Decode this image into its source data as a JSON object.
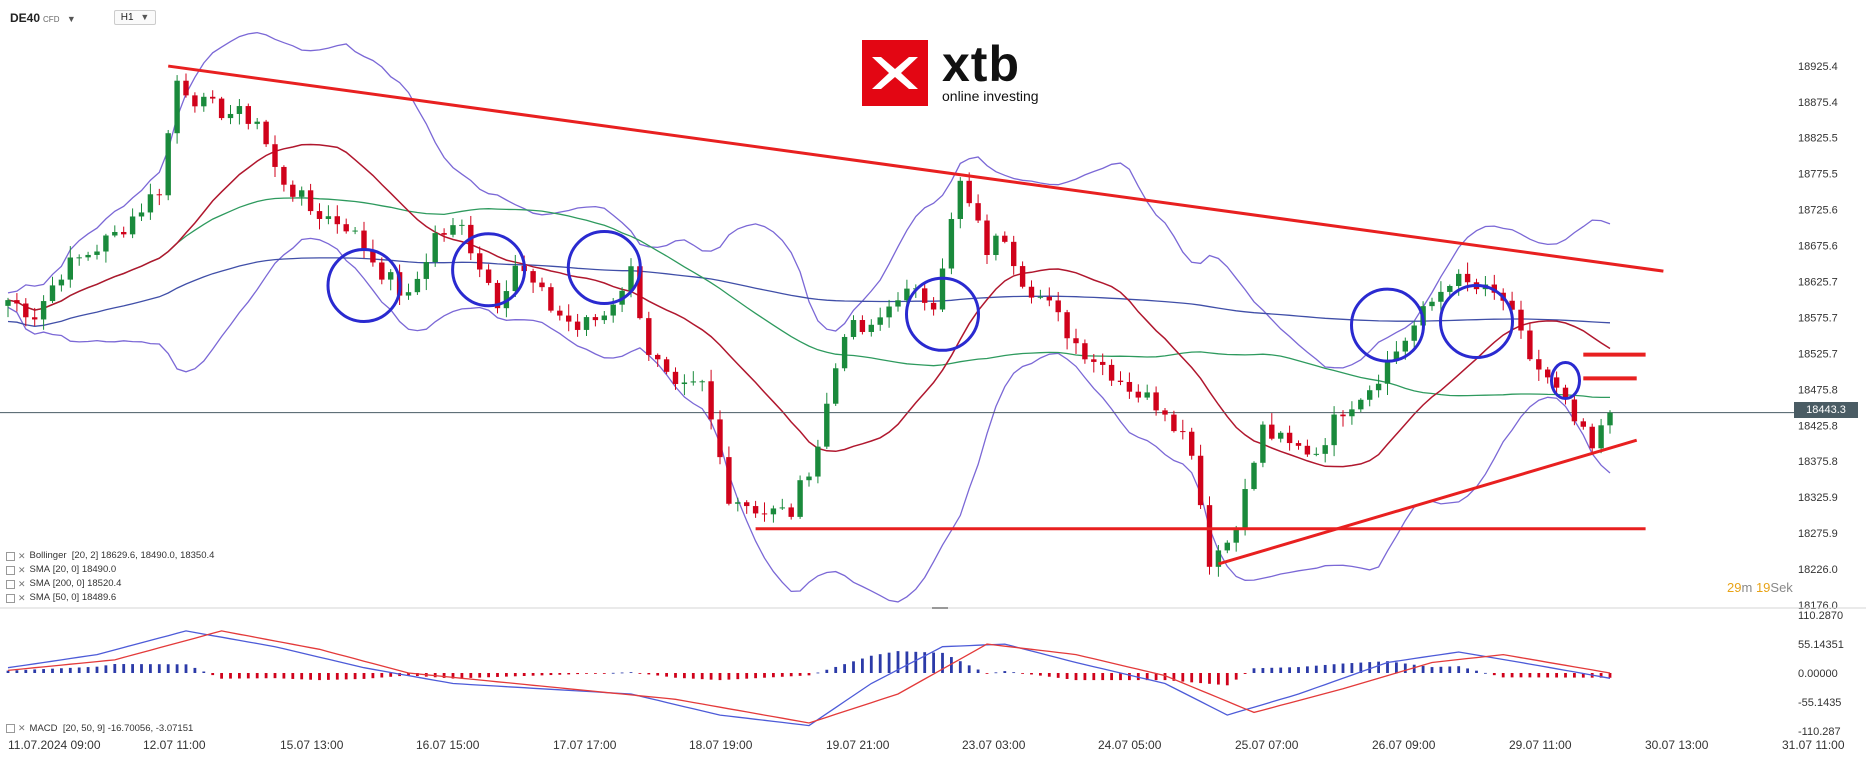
{
  "header": {
    "symbol": "DE40",
    "instrument_type": "CFD",
    "timeframe": "H1"
  },
  "logo": {
    "wordmark": "xtb",
    "tagline": "online investing",
    "color": "#e30613"
  },
  "current_price": {
    "value": "18443.3",
    "line_color": "#4a5c64"
  },
  "candle_timer": {
    "minutes": "29",
    "minutes_unit": "m",
    "seconds": "19",
    "seconds_unit": "Sek"
  },
  "indicators": [
    {
      "label": "Bollinger",
      "params": "[20, 2] 18629.6, 18490.0, 18350.4",
      "color": "#7b68d6"
    },
    {
      "label": "SMA",
      "params": "[20, 0] 18490.0",
      "color": "#b0172e"
    },
    {
      "label": "SMA",
      "params": "[200, 0] 18520.4",
      "color": "#404fa8"
    },
    {
      "label": "SMA",
      "params": "[50, 0] 18489.6",
      "color": "#2e9a5e"
    }
  ],
  "macd": {
    "label": "MACD",
    "params": "[20, 50, 9] -16.70056, -3.07151"
  },
  "chart_data": [
    {
      "type": "candlestick",
      "title": "",
      "y_axis_ticks": [
        "18925.4",
        "18875.4",
        "18825.5",
        "18775.5",
        "18725.6",
        "18675.6",
        "18625.7",
        "18575.7",
        "18525.7",
        "18475.8",
        "18425.8",
        "18375.8",
        "18325.9",
        "18275.9",
        "18226.0",
        "18176.0"
      ],
      "ylim": [
        18176.0,
        18939.0
      ],
      "x_axis_ticks": [
        "11.07.2024 09:00",
        "12.07 11:00",
        "15.07 13:00",
        "16.07 15:00",
        "17.07 17:00",
        "18.07 19:00",
        "19.07 21:00",
        "23.07 03:00",
        "24.07 05:00",
        "25.07 07:00",
        "26.07 09:00",
        "29.07 11:00",
        "30.07 13:00",
        "31.07 11:00"
      ],
      "anchors": [
        {
          "i": 0,
          "p": 18600
        },
        {
          "i": 3,
          "p": 18580
        },
        {
          "i": 6,
          "p": 18640
        },
        {
          "i": 12,
          "p": 18690
        },
        {
          "i": 17,
          "p": 18755
        },
        {
          "i": 19,
          "p": 18905
        },
        {
          "i": 22,
          "p": 18870
        },
        {
          "i": 28,
          "p": 18850
        },
        {
          "i": 30,
          "p": 18780
        },
        {
          "i": 34,
          "p": 18725
        },
        {
          "i": 38,
          "p": 18705
        },
        {
          "i": 42,
          "p": 18640
        },
        {
          "i": 45,
          "p": 18600
        },
        {
          "i": 48,
          "p": 18690
        },
        {
          "i": 51,
          "p": 18700
        },
        {
          "i": 55,
          "p": 18600
        },
        {
          "i": 57,
          "p": 18650
        },
        {
          "i": 61,
          "p": 18590
        },
        {
          "i": 64,
          "p": 18560
        },
        {
          "i": 67,
          "p": 18580
        },
        {
          "i": 70,
          "p": 18640
        },
        {
          "i": 72,
          "p": 18530
        },
        {
          "i": 75,
          "p": 18470
        },
        {
          "i": 78,
          "p": 18480
        },
        {
          "i": 81,
          "p": 18330
        },
        {
          "i": 85,
          "p": 18305
        },
        {
          "i": 88,
          "p": 18305
        },
        {
          "i": 91,
          "p": 18400
        },
        {
          "i": 94,
          "p": 18560
        },
        {
          "i": 97,
          "p": 18555
        },
        {
          "i": 100,
          "p": 18610
        },
        {
          "i": 104,
          "p": 18600
        },
        {
          "i": 107,
          "p": 18760
        },
        {
          "i": 110,
          "p": 18670
        },
        {
          "i": 112,
          "p": 18690
        },
        {
          "i": 114,
          "p": 18630
        },
        {
          "i": 117,
          "p": 18590
        },
        {
          "i": 120,
          "p": 18540
        },
        {
          "i": 124,
          "p": 18500
        },
        {
          "i": 127,
          "p": 18470
        },
        {
          "i": 130,
          "p": 18450
        },
        {
          "i": 133,
          "p": 18395
        },
        {
          "i": 135,
          "p": 18240
        },
        {
          "i": 137,
          "p": 18265
        },
        {
          "i": 139,
          "p": 18330
        },
        {
          "i": 141,
          "p": 18420
        },
        {
          "i": 144,
          "p": 18395
        },
        {
          "i": 147,
          "p": 18390
        },
        {
          "i": 150,
          "p": 18450
        },
        {
          "i": 153,
          "p": 18480
        },
        {
          "i": 156,
          "p": 18530
        },
        {
          "i": 159,
          "p": 18580
        },
        {
          "i": 162,
          "p": 18630
        },
        {
          "i": 165,
          "p": 18615
        },
        {
          "i": 168,
          "p": 18600
        },
        {
          "i": 171,
          "p": 18520
        },
        {
          "i": 174,
          "p": 18470
        },
        {
          "i": 176,
          "p": 18430
        },
        {
          "i": 178,
          "p": 18390
        },
        {
          "i": 180,
          "p": 18443
        }
      ],
      "annotations": {
        "resistance_trendline": {
          "from": {
            "i": 18,
            "p": 18925
          },
          "to": {
            "i": 186,
            "p": 18640
          },
          "color": "#e82020"
        },
        "support_trendline": {
          "from": {
            "i": 136,
            "p": 18233
          },
          "to": {
            "i": 183,
            "p": 18405
          },
          "color": "#e82020"
        },
        "horizontal_support": {
          "from_i": 84,
          "to_i": 184,
          "p": 18282,
          "color": "#e82020"
        },
        "target_marks": [
          {
            "i_from": 177,
            "i_to": 184,
            "p": 18524
          },
          {
            "i_from": 177,
            "i_to": 183,
            "p": 18491
          }
        ],
        "circles": [
          {
            "i": 40,
            "p": 18620
          },
          {
            "i": 54,
            "p": 18642
          },
          {
            "i": 67,
            "p": 18645
          },
          {
            "i": 105,
            "p": 18580
          },
          {
            "i": 155,
            "p": 18565
          },
          {
            "i": 165,
            "p": 18570
          },
          {
            "i": 175,
            "p": 18488
          }
        ]
      }
    },
    {
      "type": "macd",
      "y_axis_ticks": [
        "110.2870",
        "55.14351",
        "0.00000",
        "-55.1435",
        "-110.287"
      ],
      "ylim": [
        -110.287,
        110.287
      ],
      "macd_anchors": [
        {
          "i": 0,
          "v": 10
        },
        {
          "i": 10,
          "v": 35
        },
        {
          "i": 20,
          "v": 80
        },
        {
          "i": 30,
          "v": 50
        },
        {
          "i": 40,
          "v": 10
        },
        {
          "i": 50,
          "v": -20
        },
        {
          "i": 60,
          "v": -30
        },
        {
          "i": 70,
          "v": -40
        },
        {
          "i": 80,
          "v": -80
        },
        {
          "i": 90,
          "v": -100
        },
        {
          "i": 97,
          "v": -20
        },
        {
          "i": 105,
          "v": 50
        },
        {
          "i": 112,
          "v": 55
        },
        {
          "i": 120,
          "v": 20
        },
        {
          "i": 130,
          "v": -20
        },
        {
          "i": 137,
          "v": -80
        },
        {
          "i": 145,
          "v": -40
        },
        {
          "i": 155,
          "v": 20
        },
        {
          "i": 163,
          "v": 40
        },
        {
          "i": 170,
          "v": 20
        },
        {
          "i": 180,
          "v": -10
        }
      ],
      "signal_anchors": [
        {
          "i": 0,
          "v": 5
        },
        {
          "i": 12,
          "v": 25
        },
        {
          "i": 24,
          "v": 80
        },
        {
          "i": 35,
          "v": 45
        },
        {
          "i": 45,
          "v": 0
        },
        {
          "i": 60,
          "v": -25
        },
        {
          "i": 75,
          "v": -50
        },
        {
          "i": 90,
          "v": -95
        },
        {
          "i": 100,
          "v": -40
        },
        {
          "i": 110,
          "v": 55
        },
        {
          "i": 120,
          "v": 35
        },
        {
          "i": 130,
          "v": -5
        },
        {
          "i": 140,
          "v": -75
        },
        {
          "i": 150,
          "v": -30
        },
        {
          "i": 160,
          "v": 20
        },
        {
          "i": 168,
          "v": 35
        },
        {
          "i": 180,
          "v": 0
        }
      ]
    }
  ]
}
